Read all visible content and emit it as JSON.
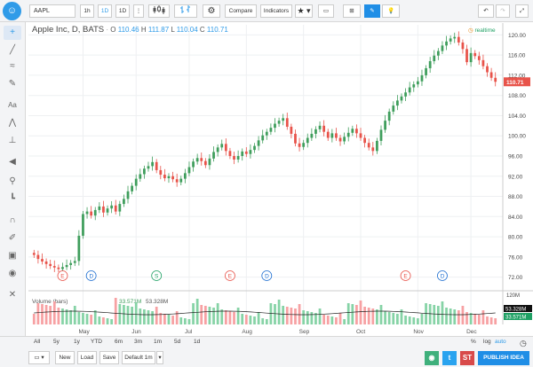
{
  "toolbar": {
    "symbol": "AAPL",
    "intervals": [
      "1h",
      "1D",
      "1D"
    ],
    "compare_label": "Compare",
    "indicators_label": "Indicators",
    "more": "⋮"
  },
  "legend": {
    "title": "Apple Inc, D, BATS",
    "o_label": "O",
    "o": "110.46",
    "h_label": "H",
    "h": "111.87",
    "l_label": "L",
    "l": "110.04",
    "c_label": "C",
    "c": "110.71"
  },
  "status": {
    "realtime": "realtime"
  },
  "chart_data": {
    "type": "candlestick",
    "symbol": "AAPL",
    "interval": "D",
    "x_ticks": [
      "May",
      "Jun",
      "Jul",
      "Aug",
      "Sep",
      "Oct",
      "Nov",
      "Dec"
    ],
    "y_ticks": [
      "120.00",
      "116.00",
      "112.00",
      "108.00",
      "104.00",
      "100.00",
      "96.00",
      "92.00",
      "88.00",
      "84.00",
      "80.00",
      "76.00",
      "72.00"
    ],
    "ylim": [
      70,
      122
    ],
    "last_price": "110.71",
    "closes": [
      76.4,
      75.6,
      75.1,
      74.6,
      74.2,
      73.9,
      73.6,
      74.0,
      74.4,
      74.8,
      75.2,
      80.2,
      84.5,
      85.0,
      84.2,
      85.3,
      86.0,
      84.8,
      85.6,
      86.2,
      85.0,
      86.5,
      87.5,
      89.0,
      90.1,
      91.5,
      92.4,
      93.5,
      94.0,
      94.8,
      93.2,
      92.3,
      91.6,
      92.0,
      91.4,
      90.8,
      91.5,
      92.6,
      93.8,
      94.9,
      95.6,
      95.0,
      94.2,
      95.5,
      96.8,
      97.7,
      98.4,
      97.0,
      96.0,
      95.3,
      96.0,
      96.9,
      96.4,
      97.2,
      98.0,
      99.1,
      100.1,
      100.8,
      101.6,
      102.4,
      103.0,
      103.5,
      101.8,
      100.4,
      98.5,
      97.8,
      98.6,
      99.6,
      100.4,
      101.3,
      102.0,
      100.8,
      99.6,
      100.5,
      99.6,
      98.9,
      99.8,
      100.6,
      101.4,
      100.5,
      99.6,
      98.6,
      97.7,
      97.0,
      99.0,
      101.2,
      103.0,
      104.8,
      106.0,
      107.0,
      107.8,
      108.6,
      109.6,
      110.2,
      110.8,
      112.0,
      113.4,
      114.8,
      115.9,
      116.8,
      117.9,
      118.7,
      119.3,
      119.6,
      118.5,
      117.2,
      114.6,
      116.4,
      115.8,
      115.0,
      113.8,
      112.6,
      111.5,
      110.71
    ],
    "events": [
      {
        "label": "E",
        "color": "#e8534a"
      },
      {
        "label": "D",
        "color": "#1f6fd1"
      },
      {
        "label": "S",
        "color": "#1fa064"
      },
      {
        "label": "E",
        "color": "#e8534a"
      },
      {
        "label": "D",
        "color": "#1f6fd1"
      },
      {
        "label": "E",
        "color": "#e8534a"
      },
      {
        "label": "D",
        "color": "#1f6fd1"
      }
    ],
    "volume": {
      "label": "Volume (bars)",
      "ma": "33.571M",
      "value": "53.328M",
      "scale": [
        "120M",
        "53.328M",
        "33.571M"
      ]
    }
  },
  "ranges": [
    "All",
    "5y",
    "1y",
    "YTD",
    "6m",
    "3m",
    "1m",
    "5d",
    "1d"
  ],
  "bottom_bar": {
    "new": "New",
    "load": "Load",
    "save": "Save",
    "default": "Default 1m",
    "publish": "PUBLISH IDEA",
    "stocktwits": "ST",
    "twitter": "t",
    "screenshot": "◉"
  },
  "axis_options": {
    "percent": "%",
    "log": "log",
    "auto": "auto"
  },
  "colors": {
    "up": "#3f9e5c",
    "down": "#e8534a",
    "accent": "#2f9be8",
    "volume_up": "#86d3a6",
    "volume_down": "#f7a1a3"
  }
}
